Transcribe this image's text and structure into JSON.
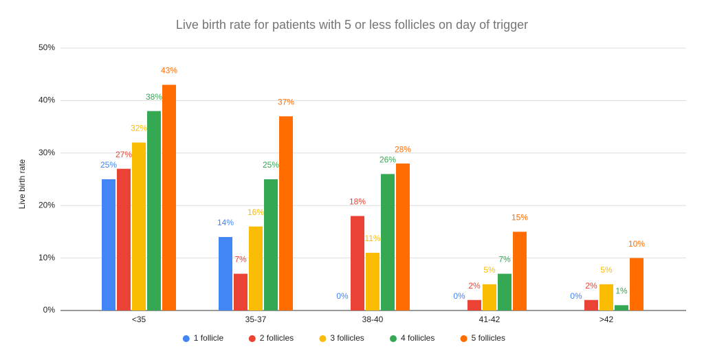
{
  "chart_data": {
    "type": "bar",
    "title": "Live birth rate for patients with 5 or less follicles on day of trigger",
    "y_label": "Live birth rate",
    "categories": [
      "<35",
      "35-37",
      "38-40",
      "41-42",
      ">42"
    ],
    "series": [
      {
        "name": "1 follicle",
        "color": "#4285f4",
        "values": [
          25,
          14,
          0,
          0,
          0
        ],
        "value_labels": [
          "25%",
          "14%",
          "0%",
          "0%",
          "0%"
        ]
      },
      {
        "name": "2 follicles",
        "color": "#ea4335",
        "values": [
          27,
          7,
          18,
          2,
          2
        ],
        "value_labels": [
          "27%",
          "7%",
          "18%",
          "2%",
          "2%"
        ]
      },
      {
        "name": "3 follicles",
        "color": "#fbbc04",
        "values": [
          32,
          16,
          11,
          5,
          5
        ],
        "value_labels": [
          "32%",
          "16%",
          "11%",
          "5%",
          "5%"
        ]
      },
      {
        "name": "4 follicles",
        "color": "#34a853",
        "values": [
          38,
          25,
          26,
          7,
          1
        ],
        "value_labels": [
          "38%",
          "25%",
          "26%",
          "7%",
          "1%"
        ]
      },
      {
        "name": "5 follicles",
        "color": "#ff6d01",
        "values": [
          43,
          37,
          28,
          15,
          10
        ],
        "value_labels": [
          "43%",
          "37%",
          "28%",
          "15%",
          "10%"
        ]
      }
    ],
    "ylim": [
      0,
      50
    ],
    "yticks": [
      {
        "value": 0,
        "label": "0%"
      },
      {
        "value": 10,
        "label": "10%"
      },
      {
        "value": 20,
        "label": "20%"
      },
      {
        "value": 30,
        "label": "30%"
      },
      {
        "value": 40,
        "label": "40%"
      },
      {
        "value": 50,
        "label": "50%"
      }
    ],
    "grid": true,
    "legend": "bottom"
  }
}
